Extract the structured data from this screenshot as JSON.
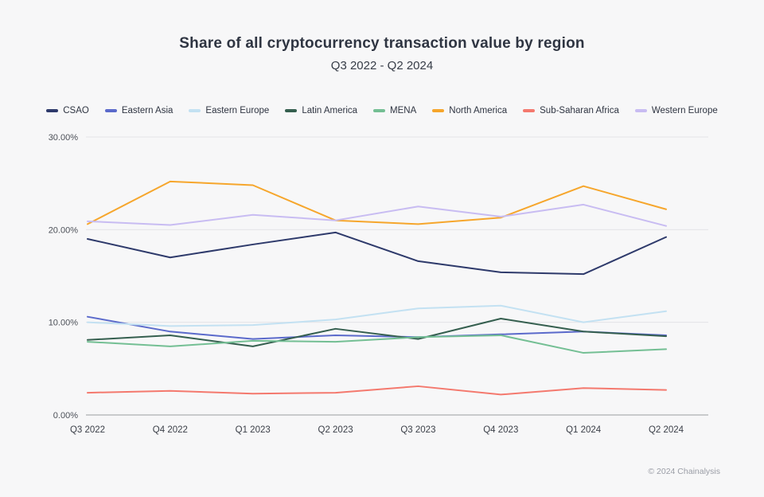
{
  "header": {
    "title": "Share of all cryptocurrency transaction value by region",
    "subtitle": "Q3 2022 - Q2 2024"
  },
  "footer": {
    "copyright": "© 2024 Chainalysis"
  },
  "colors": {
    "background": "#f7f7f8",
    "grid_line": "#e4e4e7",
    "axis_line": "#9a9ca1",
    "tick_label": "#4c5058",
    "title_text": "#2f3542"
  },
  "chart_data": {
    "type": "line",
    "title": "Share of all cryptocurrency transaction value by region",
    "subtitle": "Q3 2022 - Q2 2024",
    "xlabel": "",
    "ylabel": "",
    "ylim": [
      0,
      30
    ],
    "yticks": [
      0,
      10,
      20,
      30
    ],
    "ytick_labels": [
      "0.00%",
      "10.00%",
      "20.00%",
      "30.00%"
    ],
    "grid": true,
    "legend_position": "top",
    "categories": [
      "Q3 2022",
      "Q4 2022",
      "Q1 2023",
      "Q2 2023",
      "Q3 2023",
      "Q4 2023",
      "Q1 2024",
      "Q2 2024"
    ],
    "series": [
      {
        "name": "CSAO",
        "color": "#2e3a6b",
        "values": [
          19.0,
          17.0,
          18.4,
          19.7,
          16.6,
          15.4,
          15.2,
          19.2
        ]
      },
      {
        "name": "Eastern Asia",
        "color": "#5b6acb",
        "values": [
          10.6,
          9.0,
          8.2,
          8.6,
          8.4,
          8.7,
          9.0,
          8.6
        ]
      },
      {
        "name": "Eastern Europe",
        "color": "#c3e1f2",
        "values": [
          10.0,
          9.6,
          9.7,
          10.3,
          11.5,
          11.8,
          10.0,
          11.2
        ]
      },
      {
        "name": "Latin America",
        "color": "#355f4f",
        "values": [
          8.1,
          8.6,
          7.4,
          9.3,
          8.2,
          10.4,
          9.0,
          8.5
        ]
      },
      {
        "name": "MENA",
        "color": "#74bf94",
        "values": [
          7.9,
          7.4,
          8.0,
          7.9,
          8.4,
          8.6,
          6.7,
          7.1
        ]
      },
      {
        "name": "North America",
        "color": "#f6a62c",
        "values": [
          20.6,
          25.2,
          24.8,
          21.0,
          20.6,
          21.3,
          24.7,
          22.2
        ]
      },
      {
        "name": "Sub-Saharan Africa",
        "color": "#f4796e",
        "values": [
          2.4,
          2.6,
          2.3,
          2.4,
          3.1,
          2.2,
          2.9,
          2.7
        ]
      },
      {
        "name": "Western Europe",
        "color": "#c8bcf2",
        "values": [
          20.9,
          20.5,
          21.6,
          21.0,
          22.5,
          21.4,
          22.7,
          20.4
        ]
      }
    ]
  }
}
